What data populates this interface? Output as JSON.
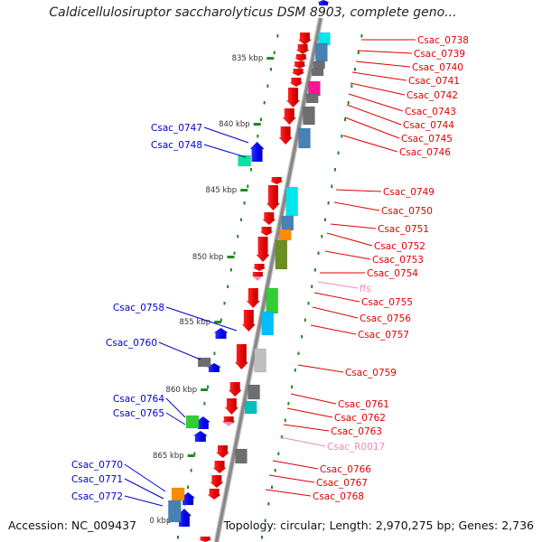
{
  "title": "Caldicellulosiruptor saccharolyticus DSM 8903, complete geno...",
  "footer": {
    "accession": "Accession: NC_009437",
    "summary": "Topology: circular; Length: 2,970,275 bp; Genes: 2,736"
  },
  "colors": {
    "plus_strand_label": "#e00000",
    "minus_strand_label": "#0000cc",
    "rna_label": "#ee88bb",
    "backbone": "#888888",
    "tick": "#228822"
  },
  "scale_ticks": [
    "835 kbp",
    "840 kbp",
    "845 kbp",
    "850 kbp",
    "855 kbp",
    "860 kbp",
    "865 kbp",
    "0 kbp"
  ],
  "genes": [
    {
      "label": "Csac_0738",
      "strand": "plus",
      "protein_color": "#00e5ee"
    },
    {
      "label": "Csac_0739",
      "strand": "plus",
      "protein_color": "#4682b4"
    },
    {
      "label": "Csac_0740",
      "strand": "plus",
      "protein_color": "#6e6e6e"
    },
    {
      "label": "Csac_0741",
      "strand": "plus",
      "protein_color": "#ff1493"
    },
    {
      "label": "Csac_0742",
      "strand": "plus",
      "protein_color": "#ff1493"
    },
    {
      "label": "Csac_0743",
      "strand": "plus",
      "protein_color": "#6e6e6e"
    },
    {
      "label": "Csac_0744",
      "strand": "plus",
      "protein_color": "#6e6e6e"
    },
    {
      "label": "Csac_0745",
      "strand": "plus",
      "protein_color": "#4682b4"
    },
    {
      "label": "Csac_0746",
      "strand": "plus",
      "protein_color": "#4682b4"
    },
    {
      "label": "Csac_0747",
      "strand": "minus",
      "protein_color": "#00e5a0"
    },
    {
      "label": "Csac_0748",
      "strand": "minus",
      "protein_color": "#00e5a0"
    },
    {
      "label": "Csac_0749",
      "strand": "plus",
      "protein_color": "#00e5ee"
    },
    {
      "label": "Csac_0750",
      "strand": "plus",
      "protein_color": "#00e5ee"
    },
    {
      "label": "Csac_0751",
      "strand": "plus",
      "protein_color": "#4682b4"
    },
    {
      "label": "Csac_0752",
      "strand": "plus",
      "protein_color": "#ff8c00"
    },
    {
      "label": "Csac_0753",
      "strand": "plus",
      "protein_color": "#6b8e23"
    },
    {
      "label": "Csac_0754",
      "strand": "plus",
      "protein_color": "#6b8e23"
    },
    {
      "label": "ffs",
      "strand": "rna",
      "protein_color": "#ee88bb"
    },
    {
      "label": "Csac_0755",
      "strand": "plus",
      "protein_color": "#32cd32"
    },
    {
      "label": "Csac_0756",
      "strand": "plus",
      "protein_color": "#00bfff"
    },
    {
      "label": "Csac_0757",
      "strand": "plus",
      "protein_color": "#00bfff"
    },
    {
      "label": "Csac_0758",
      "strand": "minus",
      "protein_color": "#0000ee"
    },
    {
      "label": "Csac_0759",
      "strand": "plus",
      "protein_color": "#bfbfbf"
    },
    {
      "label": "Csac_0760",
      "strand": "minus",
      "protein_color": "#6e6e6e"
    },
    {
      "label": "Csac_0761",
      "strand": "plus",
      "protein_color": "#6e6e6e"
    },
    {
      "label": "Csac_0762",
      "strand": "plus",
      "protein_color": "#00bfbf"
    },
    {
      "label": "Csac_0763",
      "strand": "plus",
      "protein_color": "#00bfbf"
    },
    {
      "label": "Csac_R0017",
      "strand": "rna",
      "protein_color": "#ee88bb"
    },
    {
      "label": "Csac_0764",
      "strand": "minus",
      "protein_color": "#32cd32"
    },
    {
      "label": "Csac_0765",
      "strand": "minus",
      "protein_color": "#32cd32"
    },
    {
      "label": "Csac_0766",
      "strand": "plus",
      "protein_color": "#6e6e6e"
    },
    {
      "label": "Csac_0767",
      "strand": "plus",
      "protein_color": "#6e6e6e"
    },
    {
      "label": "Csac_0768",
      "strand": "plus",
      "protein_color": "#6e6e6e"
    },
    {
      "label": "Csac_0770",
      "strand": "minus",
      "protein_color": "#ff8c00"
    },
    {
      "label": "Csac_0771",
      "strand": "minus",
      "protein_color": "#4682b4"
    },
    {
      "label": "Csac_0772",
      "strand": "minus",
      "protein_color": "#4682b4"
    }
  ]
}
